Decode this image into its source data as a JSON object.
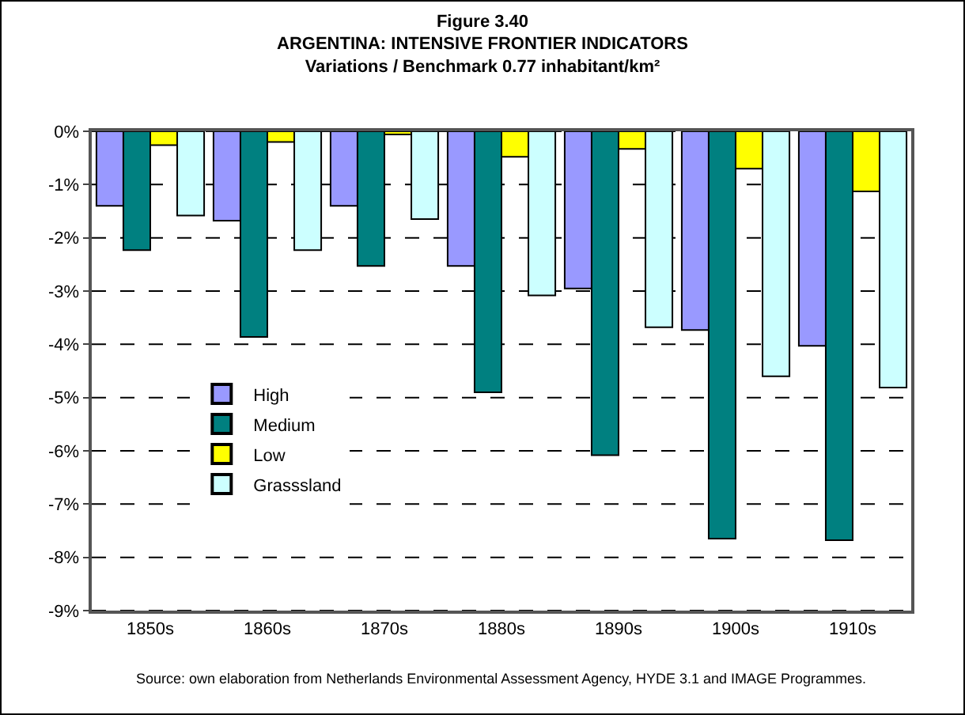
{
  "chart_data": {
    "type": "bar",
    "title": "Figure 3.40\nARGENTINA: INTENSIVE FRONTIER INDICATORS\nVariations / Benchmark 0.77 inhabitant/km²",
    "categories": [
      "1850s",
      "1860s",
      "1870s",
      "1880s",
      "1890s",
      "1900s",
      "1910s"
    ],
    "series": [
      {
        "name": "High",
        "color": "#9999ff",
        "values": [
          -1.4,
          -1.68,
          -1.4,
          -2.53,
          -2.95,
          -3.73,
          -4.03
        ]
      },
      {
        "name": "Medium",
        "color": "#008080",
        "values": [
          -2.23,
          -3.86,
          -2.53,
          -4.9,
          -6.08,
          -7.65,
          -7.68
        ]
      },
      {
        "name": "Low",
        "color": "#ffff00",
        "values": [
          -0.26,
          -0.2,
          -0.06,
          -0.48,
          -0.33,
          -0.7,
          -1.13
        ]
      },
      {
        "name": "Grasssland",
        "color": "#ccffff",
        "values": [
          -1.58,
          -2.23,
          -1.65,
          -3.08,
          -3.68,
          -4.6,
          -4.81
        ]
      }
    ],
    "ylim": [
      -9,
      0
    ],
    "yticks": [
      {
        "value": 0,
        "label": "0%"
      },
      {
        "value": -1,
        "label": "-1%"
      },
      {
        "value": -2,
        "label": "-2%"
      },
      {
        "value": -3,
        "label": "-3%"
      },
      {
        "value": -4,
        "label": "-4%"
      },
      {
        "value": -5,
        "label": "-5%"
      },
      {
        "value": -6,
        "label": "-6%"
      },
      {
        "value": -7,
        "label": "-7%"
      },
      {
        "value": -8,
        "label": "-8%"
      },
      {
        "value": -9,
        "label": "-9%"
      }
    ],
    "grid": "y",
    "legend": "left",
    "annotations": [
      "Source: own elaboration from Netherlands Environmental Assessment Agency, HYDE 3.1 and IMAGE Programmes."
    ]
  }
}
